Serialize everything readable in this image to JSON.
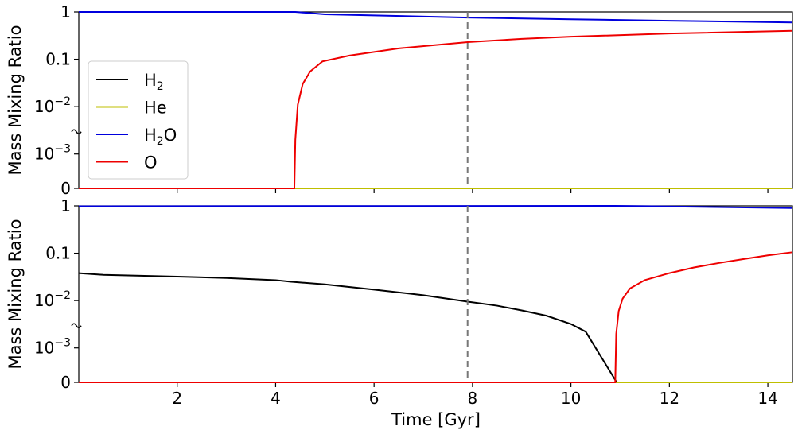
{
  "chart_data": [
    {
      "type": "line",
      "panel": "top",
      "ylabel": "Mass Mixing Ratio",
      "xlim": [
        0,
        14.5
      ],
      "yscale": "piecewise: linear 0-10^-3 (compressed), log 10^-3 to 1",
      "ytick_labels": [
        "1",
        "0.1",
        "10^-2",
        "10^-3",
        "0"
      ],
      "ytick_values": [
        1,
        0.1,
        0.01,
        0.001,
        0
      ],
      "vline": {
        "x": 7.9,
        "style": "dashed",
        "color": "#777777"
      },
      "legend": {
        "placement": "left",
        "entries": [
          {
            "label_main": "H",
            "label_sub": "2",
            "label_tail": "",
            "color": "#000000"
          },
          {
            "label_main": "He",
            "label_sub": "",
            "label_tail": "",
            "color": "#bfbf00"
          },
          {
            "label_main": "H",
            "label_sub": "2",
            "label_tail": "O",
            "color": "#0000dd"
          },
          {
            "label_main": "O",
            "label_sub": "",
            "label_tail": "",
            "color": "#ee0000"
          }
        ]
      },
      "series": [
        {
          "color": "#000000",
          "points": [
            [
              0,
              0
            ],
            [
              14.5,
              0
            ]
          ]
        },
        {
          "color": "#bfbf00",
          "points": [
            [
              0,
              0
            ],
            [
              14.5,
              0
            ]
          ]
        },
        {
          "color": "#0000dd",
          "points": [
            [
              0,
              1
            ],
            [
              4.4,
              1
            ],
            [
              5,
              0.89
            ],
            [
              7.9,
              0.76
            ],
            [
              10,
              0.7
            ],
            [
              12,
              0.65
            ],
            [
              14.5,
              0.6
            ]
          ]
        },
        {
          "color": "#ee0000",
          "points": [
            [
              0,
              0
            ],
            [
              4.38,
              0
            ],
            [
              4.4,
              0.002
            ],
            [
              4.45,
              0.011
            ],
            [
              4.55,
              0.03
            ],
            [
              4.7,
              0.055
            ],
            [
              4.95,
              0.09
            ],
            [
              5.5,
              0.12
            ],
            [
              6.5,
              0.17
            ],
            [
              7.9,
              0.23
            ],
            [
              9,
              0.27
            ],
            [
              10,
              0.3
            ],
            [
              12,
              0.35
            ],
            [
              14.5,
              0.4
            ]
          ]
        }
      ]
    },
    {
      "type": "line",
      "panel": "bottom",
      "ylabel": "Mass Mixing Ratio",
      "xlabel": "Time [Gyr]",
      "xlim": [
        0,
        14.5
      ],
      "xticks": [
        2,
        4,
        6,
        8,
        10,
        12,
        14
      ],
      "ytick_labels": [
        "1",
        "0.1",
        "10^-2",
        "10^-3",
        "0"
      ],
      "ytick_values": [
        1,
        0.1,
        0.01,
        0.001,
        0
      ],
      "vline": {
        "x": 7.9,
        "style": "dashed",
        "color": "#777777"
      },
      "series": [
        {
          "color": "#000000",
          "points": [
            [
              0,
              0.038
            ],
            [
              0.5,
              0.035
            ],
            [
              1,
              0.034
            ],
            [
              2,
              0.032
            ],
            [
              3,
              0.03
            ],
            [
              4,
              0.027
            ],
            [
              4.3,
              0.025
            ],
            [
              5,
              0.022
            ],
            [
              6,
              0.017
            ],
            [
              7,
              0.013
            ],
            [
              7.9,
              0.0095
            ],
            [
              8.5,
              0.0078
            ],
            [
              9,
              0.0062
            ],
            [
              9.5,
              0.0048
            ],
            [
              10,
              0.0032
            ],
            [
              10.3,
              0.0022
            ],
            [
              10.93,
              0
            ]
          ]
        },
        {
          "color": "#bfbf00",
          "points": [
            [
              0,
              0
            ],
            [
              14.5,
              0
            ]
          ]
        },
        {
          "color": "#0000dd",
          "points": [
            [
              0,
              0.98
            ],
            [
              10.9,
              1
            ],
            [
              12,
              0.97
            ],
            [
              14.5,
              0.9
            ]
          ]
        },
        {
          "color": "#ee0000",
          "points": [
            [
              0,
              0
            ],
            [
              10.9,
              0
            ],
            [
              10.92,
              0.002
            ],
            [
              10.97,
              0.006
            ],
            [
              11.05,
              0.011
            ],
            [
              11.2,
              0.018
            ],
            [
              11.5,
              0.027
            ],
            [
              12,
              0.038
            ],
            [
              12.5,
              0.05
            ],
            [
              13,
              0.062
            ],
            [
              13.5,
              0.075
            ],
            [
              14,
              0.09
            ],
            [
              14.5,
              0.105
            ]
          ]
        }
      ]
    }
  ],
  "axes_text": {
    "ylabel_top": "Mass Mixing Ratio",
    "ylabel_bottom": "Mass Mixing Ratio",
    "xlabel": "Time [Gyr]"
  }
}
